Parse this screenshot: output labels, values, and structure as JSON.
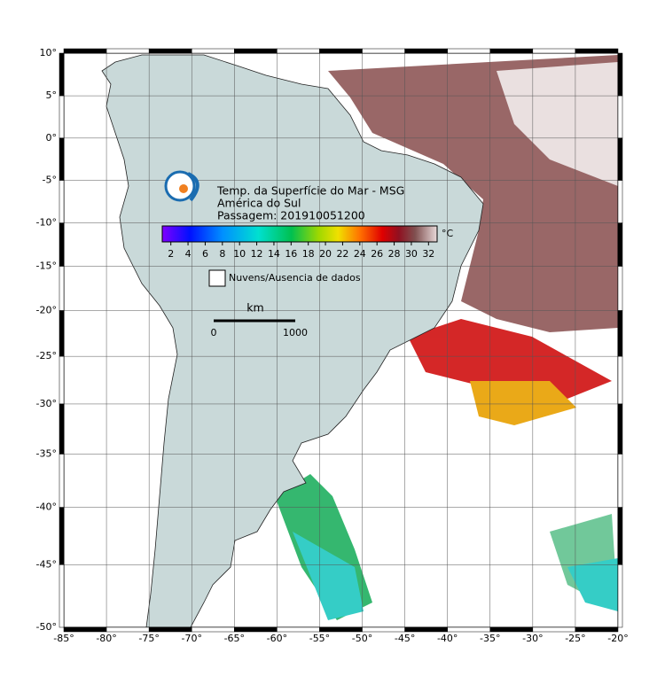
{
  "title": {
    "lines": [
      "Temp. da Superfície do Mar - MSG",
      "América do Sul",
      "Passagem: 201910051200"
    ]
  },
  "colorbar": {
    "range": [
      1,
      33
    ],
    "ticks": [
      2,
      4,
      6,
      8,
      10,
      12,
      14,
      16,
      18,
      20,
      22,
      24,
      26,
      28,
      30,
      32
    ],
    "unit": "°C"
  },
  "legend": {
    "label": "Nuvens/Ausencia de dados"
  },
  "scale_bar": {
    "unit": "km",
    "labels": [
      "0",
      "1000"
    ]
  },
  "lat_ticks": [
    {
      "value": 10,
      "label": "10°"
    },
    {
      "value": 5,
      "label": "5°"
    },
    {
      "value": 0,
      "label": "0°"
    },
    {
      "value": -5,
      "label": "-5°"
    },
    {
      "value": -10,
      "label": "-10°"
    },
    {
      "value": -15,
      "label": "-15°"
    },
    {
      "value": -20,
      "label": "-20°"
    },
    {
      "value": -25,
      "label": "-25°"
    },
    {
      "value": -30,
      "label": "-30°"
    },
    {
      "value": -35,
      "label": "-35°"
    },
    {
      "value": -40,
      "label": "-40°"
    },
    {
      "value": -45,
      "label": "-45°"
    },
    {
      "value": -50,
      "label": "-50°"
    }
  ],
  "lon_ticks": [
    {
      "value": -85,
      "label": "-85°"
    },
    {
      "value": -80,
      "label": "-80°"
    },
    {
      "value": -75,
      "label": "-75°"
    },
    {
      "value": -70,
      "label": "-70°"
    },
    {
      "value": -65,
      "label": "-65°"
    },
    {
      "value": -60,
      "label": "-60°"
    },
    {
      "value": -55,
      "label": "-55°"
    },
    {
      "value": -50,
      "label": "-50°"
    },
    {
      "value": -45,
      "label": "-45°"
    },
    {
      "value": -40,
      "label": "-40°"
    },
    {
      "value": -35,
      "label": "-35°"
    },
    {
      "value": -30,
      "label": "-30°"
    },
    {
      "value": -25,
      "label": "-25°"
    },
    {
      "value": -20,
      "label": "-20°"
    }
  ]
}
